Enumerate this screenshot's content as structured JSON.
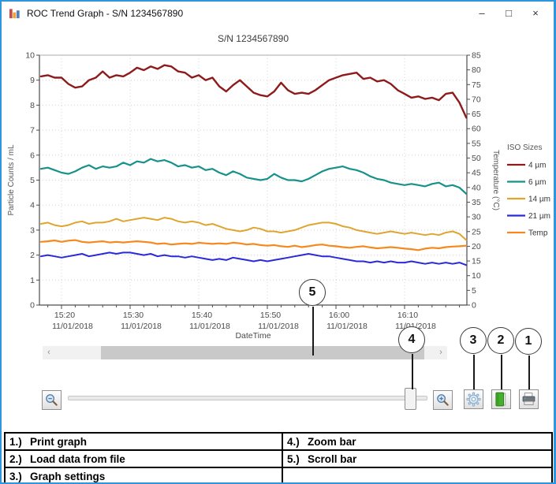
{
  "window": {
    "title": "ROC Trend Graph - S/N 1234567890",
    "controls": {
      "minimize": "–",
      "maximize": "□",
      "close": "×"
    }
  },
  "chart_data": {
    "type": "line",
    "title": "S/N 1234567890",
    "xlabel": "DateTime",
    "ylabel_left": "Particle Counts / mL",
    "ylabel_right": "Temperature (°C)",
    "ylim_left": [
      0,
      10
    ],
    "ytick_step_left": 1,
    "ylim_right": [
      0,
      85
    ],
    "ytick_step_right": 5,
    "grid": true,
    "legend_title": "ISO Sizes",
    "legend_position": "right",
    "x_start_minute": -3,
    "x_step_minutes": 1,
    "x_ticks": [
      {
        "minute": 0,
        "time": "15:20",
        "date": "11/01/2018"
      },
      {
        "minute": 10,
        "time": "15:30",
        "date": "11/01/2018"
      },
      {
        "minute": 20,
        "time": "15:40",
        "date": "11/01/2018"
      },
      {
        "minute": 30,
        "time": "15:50",
        "date": "11/01/2018"
      },
      {
        "minute": 40,
        "time": "16:00",
        "date": "11/01/2018"
      },
      {
        "minute": 50,
        "time": "16:10",
        "date": "11/01/2018"
      }
    ],
    "series": [
      {
        "name": "4 µm",
        "axis": "left",
        "color": "#8e1b1b",
        "width": 2.4,
        "values": [
          9.15,
          9.2,
          9.1,
          9.1,
          8.85,
          8.7,
          8.75,
          9.0,
          9.1,
          9.35,
          9.1,
          9.2,
          9.15,
          9.3,
          9.5,
          9.4,
          9.55,
          9.45,
          9.6,
          9.55,
          9.35,
          9.3,
          9.1,
          9.2,
          9.0,
          9.1,
          8.75,
          8.55,
          8.8,
          9.0,
          8.75,
          8.5,
          8.4,
          8.35,
          8.55,
          8.9,
          8.6,
          8.45,
          8.5,
          8.45,
          8.6,
          8.8,
          9.0,
          9.1,
          9.2,
          9.25,
          9.3,
          9.05,
          9.1,
          8.95,
          9.0,
          8.85,
          8.6,
          8.45,
          8.3,
          8.35,
          8.25,
          8.3,
          8.2,
          8.45,
          8.5,
          8.1,
          7.5
        ]
      },
      {
        "name": "6 µm",
        "axis": "left",
        "color": "#17918b",
        "width": 2.2,
        "values": [
          5.45,
          5.5,
          5.4,
          5.3,
          5.25,
          5.35,
          5.5,
          5.6,
          5.45,
          5.55,
          5.5,
          5.55,
          5.7,
          5.6,
          5.75,
          5.7,
          5.85,
          5.75,
          5.8,
          5.7,
          5.55,
          5.6,
          5.5,
          5.55,
          5.4,
          5.45,
          5.3,
          5.2,
          5.35,
          5.25,
          5.1,
          5.05,
          5.0,
          5.05,
          5.25,
          5.1,
          5.0,
          5.0,
          4.95,
          5.05,
          5.2,
          5.35,
          5.45,
          5.5,
          5.55,
          5.45,
          5.4,
          5.3,
          5.15,
          5.05,
          5.0,
          4.9,
          4.85,
          4.8,
          4.85,
          4.8,
          4.75,
          4.85,
          4.9,
          4.75,
          4.8,
          4.7,
          4.45
        ]
      },
      {
        "name": "14 µm",
        "axis": "left",
        "color": "#dfa52f",
        "width": 2,
        "values": [
          3.25,
          3.3,
          3.2,
          3.15,
          3.2,
          3.3,
          3.35,
          3.25,
          3.3,
          3.3,
          3.35,
          3.45,
          3.35,
          3.4,
          3.45,
          3.5,
          3.45,
          3.4,
          3.5,
          3.45,
          3.35,
          3.3,
          3.35,
          3.3,
          3.2,
          3.25,
          3.15,
          3.05,
          3.0,
          2.95,
          3.0,
          3.1,
          3.05,
          2.95,
          2.95,
          2.9,
          2.95,
          3.0,
          3.1,
          3.2,
          3.25,
          3.3,
          3.3,
          3.25,
          3.15,
          3.1,
          3.0,
          2.95,
          2.9,
          2.85,
          2.9,
          2.95,
          2.9,
          2.85,
          2.9,
          2.85,
          2.8,
          2.85,
          2.8,
          2.9,
          2.95,
          2.85,
          2.6
        ]
      },
      {
        "name": "21 µm",
        "axis": "left",
        "color": "#2a2ad9",
        "width": 2,
        "values": [
          1.95,
          2.0,
          1.95,
          1.9,
          1.95,
          2.0,
          2.05,
          1.95,
          2.0,
          2.05,
          2.1,
          2.05,
          2.1,
          2.1,
          2.05,
          2.0,
          2.05,
          1.95,
          2.0,
          1.95,
          1.95,
          1.9,
          1.95,
          1.9,
          1.85,
          1.8,
          1.85,
          1.8,
          1.9,
          1.85,
          1.8,
          1.75,
          1.8,
          1.75,
          1.8,
          1.85,
          1.9,
          1.95,
          2.0,
          2.05,
          2.0,
          1.95,
          1.95,
          1.9,
          1.85,
          1.8,
          1.75,
          1.75,
          1.7,
          1.75,
          1.7,
          1.75,
          1.7,
          1.7,
          1.75,
          1.7,
          1.65,
          1.7,
          1.65,
          1.7,
          1.65,
          1.7,
          1.6
        ]
      },
      {
        "name": "Temp",
        "axis": "right",
        "color": "#f5891d",
        "width": 2.2,
        "values": [
          21.5,
          21.7,
          22.0,
          21.5,
          21.9,
          22.1,
          21.5,
          21.3,
          21.5,
          21.7,
          21.3,
          21.5,
          21.3,
          21.5,
          21.7,
          21.5,
          21.3,
          20.8,
          21.0,
          20.6,
          20.8,
          21.0,
          20.8,
          21.2,
          21.0,
          20.8,
          21.0,
          20.8,
          21.2,
          21.0,
          20.6,
          20.8,
          20.4,
          20.2,
          20.4,
          20.0,
          19.8,
          20.2,
          19.7,
          20.0,
          20.4,
          20.6,
          20.2,
          20.0,
          19.7,
          19.5,
          19.8,
          20.0,
          19.6,
          19.3,
          19.5,
          19.7,
          19.5,
          19.2,
          19.0,
          18.7,
          19.2,
          19.5,
          19.3,
          19.7,
          19.9,
          20.0,
          20.2
        ]
      }
    ]
  },
  "controls": {
    "scrollbar": {
      "left_arrow": "‹",
      "right_arrow": "›"
    }
  },
  "callouts": [
    {
      "num": "1",
      "target": "print-graph-button"
    },
    {
      "num": "2",
      "target": "load-data-button"
    },
    {
      "num": "3",
      "target": "graph-settings-button"
    },
    {
      "num": "4",
      "target": "zoom-slider-thumb"
    },
    {
      "num": "5",
      "target": "scrollbar"
    }
  ],
  "legend_table": {
    "rows": [
      {
        "left": {
          "n": "1.)",
          "t": "Print graph"
        },
        "right": {
          "n": "4.)",
          "t": "Zoom bar"
        }
      },
      {
        "left": {
          "n": "2.)",
          "t": "Load data from file"
        },
        "right": {
          "n": "5.)",
          "t": "Scroll bar"
        }
      },
      {
        "left": {
          "n": "3.)",
          "t": "Graph settings"
        },
        "right": {
          "n": "",
          "t": ""
        }
      }
    ]
  }
}
